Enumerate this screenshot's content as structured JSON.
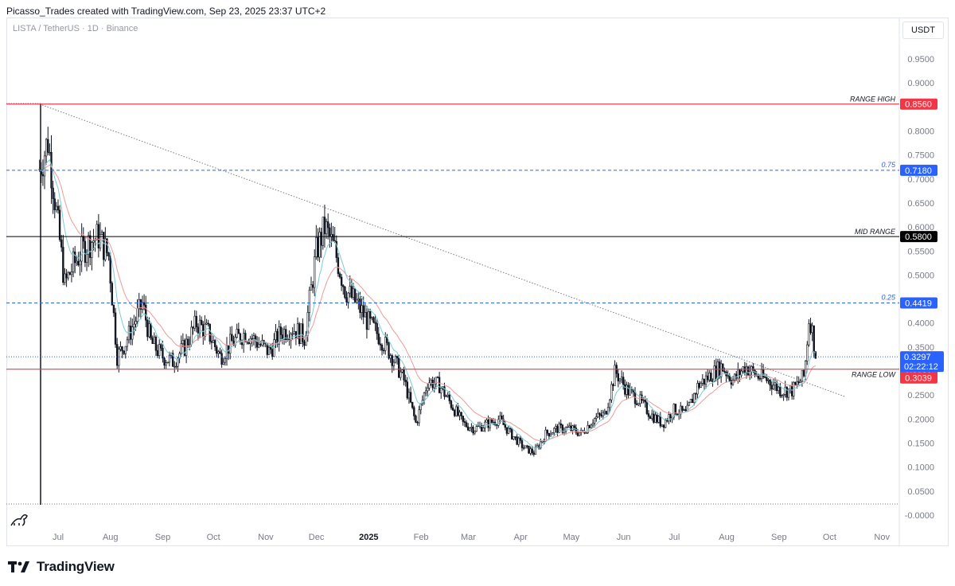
{
  "header": {
    "attribution": "Picasso_Trades created with TradingView.com, Sep 23, 2025 23:37 UTC+2",
    "symbol": "LISTA / TetherUS · 1D · Binance",
    "currency": "USDT"
  },
  "footer": {
    "brand": "TradingView"
  },
  "colors": {
    "range_line": "#f23645",
    "fib_line": "#2962ff",
    "mid_line": "#000000",
    "candle": "#131722",
    "ema_fast": "#7ecbd6",
    "ema_slow": "#ef9a9a",
    "current_price": "#2962ff"
  },
  "chart_data": {
    "type": "candlestick",
    "y_axis": {
      "ylim": [
        -0.0,
        0.95
      ],
      "ticks": [
        "0.9500",
        "0.9000",
        "0.8000",
        "0.7500",
        "0.7000",
        "0.6500",
        "0.6000",
        "0.5500",
        "0.5000",
        "0.4000",
        "0.3500",
        "0.2500",
        "0.2000",
        "0.1500",
        "0.1000",
        "0.0500",
        "-0.0000"
      ]
    },
    "x_axis": {
      "ticks": [
        "Jul",
        "Aug",
        "Sep",
        "Oct",
        "Nov",
        "Dec",
        "2025",
        "Feb",
        "Mar",
        "Apr",
        "May",
        "Jun",
        "Jul",
        "Aug",
        "Sep",
        "Oct",
        "Nov"
      ]
    },
    "levels": [
      {
        "label": "RANGE HIGH",
        "value": 0.856,
        "tag": "0.8560",
        "style": "range"
      },
      {
        "label": "0.75",
        "value": 0.718,
        "tag": "0.7180",
        "style": "fib"
      },
      {
        "label": "MID RANGE",
        "value": 0.58,
        "tag": "0.5800",
        "style": "mid"
      },
      {
        "label": "0.25",
        "value": 0.4419,
        "tag": "0.4419",
        "style": "fib"
      },
      {
        "label": "RANGE LOW",
        "value": 0.3039,
        "tag": "0.3039",
        "style": "range"
      }
    ],
    "current_price": {
      "value": 0.3297,
      "tag": "0.3297",
      "countdown": "02:22:12"
    },
    "trendline": {
      "from": {
        "date": "2024-06-20",
        "value": 0.856
      },
      "to": {
        "date": "2025-10-10",
        "value": 0.247
      }
    },
    "approx_closes": [
      {
        "date": "2024-06-20",
        "value": 0.72
      },
      {
        "date": "2024-06-25",
        "value": 0.78
      },
      {
        "date": "2024-06-30",
        "value": 0.63
      },
      {
        "date": "2024-07-05",
        "value": 0.48
      },
      {
        "date": "2024-07-10",
        "value": 0.52
      },
      {
        "date": "2024-07-15",
        "value": 0.55
      },
      {
        "date": "2024-07-20",
        "value": 0.57
      },
      {
        "date": "2024-07-25",
        "value": 0.58
      },
      {
        "date": "2024-07-31",
        "value": 0.54
      },
      {
        "date": "2024-08-05",
        "value": 0.33
      },
      {
        "date": "2024-08-10",
        "value": 0.36
      },
      {
        "date": "2024-08-15",
        "value": 0.4
      },
      {
        "date": "2024-08-20",
        "value": 0.44
      },
      {
        "date": "2024-08-25",
        "value": 0.36
      },
      {
        "date": "2024-09-01",
        "value": 0.33
      },
      {
        "date": "2024-09-07",
        "value": 0.32
      },
      {
        "date": "2024-09-14",
        "value": 0.35
      },
      {
        "date": "2024-09-21",
        "value": 0.4
      },
      {
        "date": "2024-09-28",
        "value": 0.38
      },
      {
        "date": "2024-10-05",
        "value": 0.33
      },
      {
        "date": "2024-10-12",
        "value": 0.36
      },
      {
        "date": "2024-10-20",
        "value": 0.38
      },
      {
        "date": "2024-10-27",
        "value": 0.36
      },
      {
        "date": "2024-11-03",
        "value": 0.34
      },
      {
        "date": "2024-11-10",
        "value": 0.38
      },
      {
        "date": "2024-11-17",
        "value": 0.39
      },
      {
        "date": "2024-11-24",
        "value": 0.37
      },
      {
        "date": "2024-12-01",
        "value": 0.55
      },
      {
        "date": "2024-12-06",
        "value": 0.6
      },
      {
        "date": "2024-12-12",
        "value": 0.55
      },
      {
        "date": "2024-12-18",
        "value": 0.47
      },
      {
        "date": "2024-12-25",
        "value": 0.44
      },
      {
        "date": "2025-01-01",
        "value": 0.4
      },
      {
        "date": "2025-01-08",
        "value": 0.37
      },
      {
        "date": "2025-01-15",
        "value": 0.33
      },
      {
        "date": "2025-01-22",
        "value": 0.28
      },
      {
        "date": "2025-01-29",
        "value": 0.19
      },
      {
        "date": "2025-02-05",
        "value": 0.28
      },
      {
        "date": "2025-02-12",
        "value": 0.27
      },
      {
        "date": "2025-02-19",
        "value": 0.23
      },
      {
        "date": "2025-02-26",
        "value": 0.19
      },
      {
        "date": "2025-03-05",
        "value": 0.18
      },
      {
        "date": "2025-03-12",
        "value": 0.19
      },
      {
        "date": "2025-03-19",
        "value": 0.2
      },
      {
        "date": "2025-03-26",
        "value": 0.17
      },
      {
        "date": "2025-04-03",
        "value": 0.14
      },
      {
        "date": "2025-04-09",
        "value": 0.13
      },
      {
        "date": "2025-04-16",
        "value": 0.17
      },
      {
        "date": "2025-04-23",
        "value": 0.18
      },
      {
        "date": "2025-04-30",
        "value": 0.18
      },
      {
        "date": "2025-05-07",
        "value": 0.17
      },
      {
        "date": "2025-05-14",
        "value": 0.2
      },
      {
        "date": "2025-05-21",
        "value": 0.21
      },
      {
        "date": "2025-05-27",
        "value": 0.3
      },
      {
        "date": "2025-06-03",
        "value": 0.26
      },
      {
        "date": "2025-06-10",
        "value": 0.24
      },
      {
        "date": "2025-06-17",
        "value": 0.21
      },
      {
        "date": "2025-06-24",
        "value": 0.19
      },
      {
        "date": "2025-07-01",
        "value": 0.22
      },
      {
        "date": "2025-07-08",
        "value": 0.21
      },
      {
        "date": "2025-07-15",
        "value": 0.27
      },
      {
        "date": "2025-07-22",
        "value": 0.29
      },
      {
        "date": "2025-07-29",
        "value": 0.31
      },
      {
        "date": "2025-08-05",
        "value": 0.28
      },
      {
        "date": "2025-08-12",
        "value": 0.31
      },
      {
        "date": "2025-08-19",
        "value": 0.29
      },
      {
        "date": "2025-08-26",
        "value": 0.28
      },
      {
        "date": "2025-09-02",
        "value": 0.26
      },
      {
        "date": "2025-09-09",
        "value": 0.26
      },
      {
        "date": "2025-09-16",
        "value": 0.29
      },
      {
        "date": "2025-09-19",
        "value": 0.42
      },
      {
        "date": "2025-09-23",
        "value": 0.33
      }
    ]
  }
}
